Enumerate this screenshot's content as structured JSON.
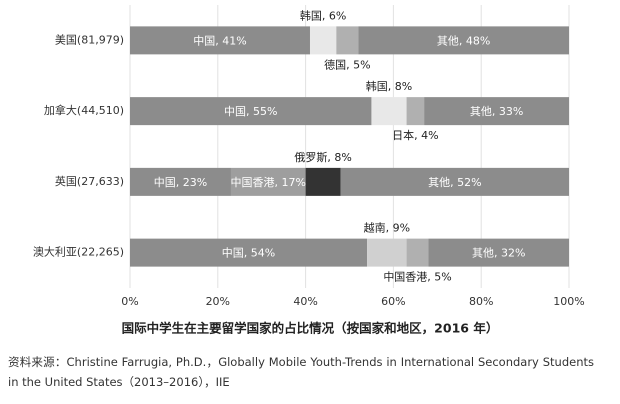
{
  "chart_data": {
    "type": "bar",
    "orientation": "horizontal",
    "stacked": true,
    "title": "国际中学生在主要留学国家的占比情况（按国家和地区，2016 年）",
    "source": "资料来源：Christine Farrugia, Ph.D.，Globally Mobile Youth-Trends in International Secondary Students in the United States（2013–2016），IIE",
    "xlim": [
      0,
      100
    ],
    "xticks": [
      {
        "value": 0,
        "label": "0%"
      },
      {
        "value": 20,
        "label": "20%"
      },
      {
        "value": 40,
        "label": "40%"
      },
      {
        "value": 60,
        "label": "60%"
      },
      {
        "value": 80,
        "label": "80%"
      },
      {
        "value": 100,
        "label": "100%"
      }
    ],
    "grid": true,
    "rows": [
      {
        "category": "美国(81,979)",
        "segments": [
          {
            "name": "中国",
            "value": 41,
            "label": "中国, 41%",
            "color": "#8c8c8c"
          },
          {
            "name": "韩国",
            "value": 6,
            "label": "韩国, 6%",
            "color": "#e8e8e8"
          },
          {
            "name": "德国",
            "value": 5,
            "label": "德国, 5%",
            "color": "#b0b0b0"
          },
          {
            "name": "其他",
            "value": 48,
            "label": "其他, 48%",
            "color": "#8c8c8c"
          }
        ]
      },
      {
        "category": "加拿大(44,510)",
        "segments": [
          {
            "name": "中国",
            "value": 55,
            "label": "中国, 55%",
            "color": "#8c8c8c"
          },
          {
            "name": "韩国",
            "value": 8,
            "label": "韩国, 8%",
            "color": "#e8e8e8"
          },
          {
            "name": "日本",
            "value": 4,
            "label": "日本, 4%",
            "color": "#b0b0b0"
          },
          {
            "name": "其他",
            "value": 33,
            "label": "其他, 33%",
            "color": "#8c8c8c"
          }
        ]
      },
      {
        "category": "英国(27,633)",
        "segments": [
          {
            "name": "中国",
            "value": 23,
            "label": "中国, 23%",
            "color": "#8c8c8c"
          },
          {
            "name": "中国香港",
            "value": 17,
            "label": "中国香港, 17%",
            "color": "#9e9e9e"
          },
          {
            "name": "俄罗斯",
            "value": 8,
            "label": "俄罗斯, 8%",
            "color": "#333333"
          },
          {
            "name": "其他",
            "value": 52,
            "label": "其他, 52%",
            "color": "#8c8c8c"
          }
        ]
      },
      {
        "category": "澳大利亚(22,265)",
        "segments": [
          {
            "name": "中国",
            "value": 54,
            "label": "中国, 54%",
            "color": "#8c8c8c"
          },
          {
            "name": "越南",
            "value": 9,
            "label": "越南, 9%",
            "color": "#d0d0d0"
          },
          {
            "name": "中国香港",
            "value": 5,
            "label": "中国香港, 5%",
            "color": "#b0b0b0"
          },
          {
            "name": "其他",
            "value": 32,
            "label": "其他, 32%",
            "color": "#8c8c8c"
          }
        ]
      }
    ]
  }
}
